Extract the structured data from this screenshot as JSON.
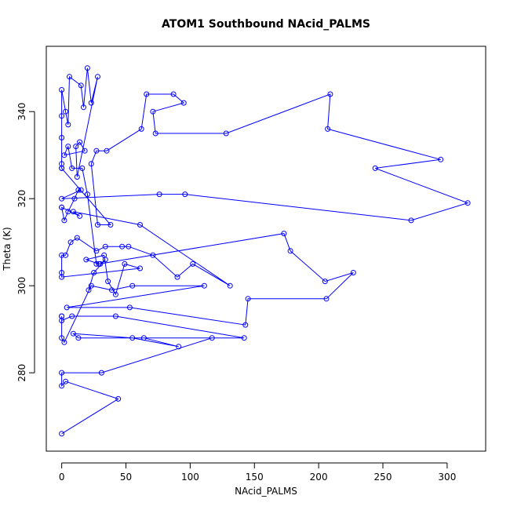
{
  "chart_data": {
    "type": "line",
    "title": "ATOM1 Southbound NAcid_PALMS",
    "xlabel": "NAcid_PALMS",
    "ylabel": "Theta (K)",
    "xlim": [
      -12,
      330
    ],
    "ylim": [
      262,
      355
    ],
    "x_ticks": [
      0,
      50,
      100,
      150,
      200,
      250,
      300
    ],
    "y_ticks": [
      280,
      300,
      320,
      340
    ],
    "grid": false,
    "legend": "none",
    "series_color": "#0000ff",
    "marker": "open-circle",
    "points": [
      [
        0,
        266
      ],
      [
        44,
        274
      ],
      [
        3,
        278
      ],
      [
        0,
        277
      ],
      [
        0,
        280
      ],
      [
        31,
        280
      ],
      [
        117,
        288
      ],
      [
        13,
        288
      ],
      [
        9,
        289
      ],
      [
        55,
        288
      ],
      [
        91,
        286
      ],
      [
        64,
        288
      ],
      [
        142,
        288
      ],
      [
        42,
        293
      ],
      [
        8,
        293
      ],
      [
        0,
        292
      ],
      [
        0,
        293
      ],
      [
        0,
        293
      ],
      [
        0,
        288
      ],
      [
        2,
        287
      ],
      [
        23,
        300
      ],
      [
        39,
        299
      ],
      [
        55,
        300
      ],
      [
        111,
        300
      ],
      [
        4,
        295
      ],
      [
        53,
        295
      ],
      [
        143,
        291
      ],
      [
        145,
        297
      ],
      [
        206,
        297
      ],
      [
        227,
        303
      ],
      [
        205,
        301
      ],
      [
        178,
        308
      ],
      [
        173,
        312
      ],
      [
        29,
        305
      ],
      [
        19,
        306
      ],
      [
        33,
        307
      ],
      [
        36,
        301
      ],
      [
        42,
        298
      ],
      [
        49,
        305
      ],
      [
        61,
        304
      ],
      [
        0,
        302
      ],
      [
        0,
        303
      ],
      [
        0,
        307
      ],
      [
        3,
        307
      ],
      [
        7,
        310
      ],
      [
        12,
        311
      ],
      [
        27,
        308
      ],
      [
        34,
        309
      ],
      [
        47,
        309
      ],
      [
        52,
        309
      ],
      [
        71,
        307
      ],
      [
        90,
        302
      ],
      [
        102,
        305
      ],
      [
        131,
        300
      ],
      [
        61,
        314
      ],
      [
        9,
        317
      ],
      [
        14,
        316
      ],
      [
        0,
        318
      ],
      [
        0,
        318
      ],
      [
        2,
        315
      ],
      [
        5,
        317
      ],
      [
        10,
        320
      ],
      [
        13,
        322
      ],
      [
        15,
        322
      ],
      [
        0,
        320
      ],
      [
        76,
        321
      ],
      [
        96,
        321
      ],
      [
        272,
        315
      ],
      [
        316,
        319
      ],
      [
        244,
        327
      ],
      [
        295,
        329
      ],
      [
        207,
        336
      ],
      [
        209,
        344
      ],
      [
        128,
        335
      ],
      [
        73,
        335
      ],
      [
        71,
        340
      ],
      [
        95,
        342
      ],
      [
        87,
        344
      ],
      [
        66,
        344
      ],
      [
        62,
        336
      ],
      [
        35,
        331
      ],
      [
        27,
        331
      ],
      [
        23,
        328
      ],
      [
        28,
        314
      ],
      [
        38,
        314
      ],
      [
        0,
        327
      ],
      [
        0,
        327
      ],
      [
        0,
        328
      ],
      [
        0,
        334
      ],
      [
        0,
        339
      ],
      [
        0,
        345
      ],
      [
        3,
        340
      ],
      [
        5,
        337
      ],
      [
        6,
        348
      ],
      [
        15,
        346
      ],
      [
        17,
        341
      ],
      [
        20,
        350
      ],
      [
        23,
        342
      ],
      [
        28,
        348
      ],
      [
        12,
        325
      ],
      [
        11,
        332
      ],
      [
        14,
        333
      ],
      [
        18,
        331
      ],
      [
        2,
        330
      ],
      [
        5,
        332
      ],
      [
        8,
        327
      ],
      [
        16,
        327
      ],
      [
        20,
        321
      ],
      [
        27,
        305
      ],
      [
        30,
        305
      ],
      [
        34,
        306
      ],
      [
        25,
        303
      ],
      [
        21,
        299
      ]
    ]
  }
}
